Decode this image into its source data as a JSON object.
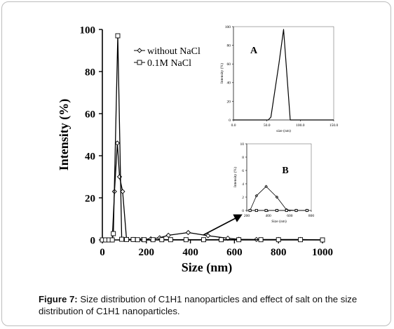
{
  "caption": {
    "label": "Figure 7:",
    "text": "Size distribution of C1H1 nanoparticles and effect of salt on the size distribution of C1H1 nanoparticles."
  },
  "chart_data": [
    {
      "id": "main",
      "type": "line",
      "title": "",
      "xlabel": "Size (nm)",
      "ylabel": "Intensity (%)",
      "xlim": [
        0,
        1000
      ],
      "ylim": [
        0,
        100
      ],
      "xticks": [
        "0",
        "200",
        "400",
        "600",
        "800",
        "1000"
      ],
      "yticks": [
        "0",
        "20",
        "40",
        "60",
        "80",
        "100"
      ],
      "legend_position": "top-center",
      "series": [
        {
          "name": "without NaCl",
          "marker": "diamond",
          "x": [
            0,
            15,
            30,
            45,
            55,
            68,
            78,
            92,
            110,
            140,
            180,
            220,
            260,
            300,
            390,
            480,
            570,
            620,
            700,
            800,
            900,
            1000
          ],
          "y": [
            0,
            0,
            0,
            0,
            23,
            46,
            30,
            23,
            0.3,
            0.2,
            0.2,
            0.5,
            1,
            2.2,
            3.5,
            2,
            0.8,
            0.3,
            0.2,
            0.2,
            0.2,
            0
          ]
        },
        {
          "name": "0.1M NaCl",
          "marker": "square",
          "x": [
            0,
            15,
            30,
            45,
            50,
            70,
            88,
            110,
            140,
            160,
            190,
            230,
            270,
            310,
            380,
            460,
            540,
            620,
            720,
            800,
            900,
            1000
          ],
          "y": [
            0,
            0,
            0,
            0,
            3,
            97,
            0.3,
            0.2,
            0.2,
            0.1,
            0.1,
            0.1,
            0.1,
            0.1,
            0.1,
            0.1,
            0.1,
            0.1,
            0.1,
            0.1,
            0.1,
            0
          ]
        }
      ]
    },
    {
      "id": "inset-a",
      "type": "line",
      "label": "A",
      "title": "",
      "xlabel": "size (nm)",
      "ylabel": "Intensity (%)",
      "xlim": [
        0,
        150
      ],
      "ylim": [
        0,
        100
      ],
      "xticks": [
        "0.0",
        "50.0",
        "100.0",
        "150.0"
      ],
      "yticks": [
        "0",
        "20",
        "40",
        "60",
        "80",
        "100"
      ],
      "series": [
        {
          "x": [
            0,
            52,
            56,
            68,
            75,
            85,
            150
          ],
          "y": [
            0,
            0,
            3,
            60,
            97,
            0,
            0
          ]
        }
      ]
    },
    {
      "id": "inset-b",
      "type": "line",
      "label": "B",
      "title": "",
      "xlabel": "Size (nm)",
      "ylabel": "Intensity (%)",
      "xlim": [
        200,
        800
      ],
      "ylim": [
        0,
        10
      ],
      "xticks": [
        "200",
        "400",
        "600",
        "800"
      ],
      "yticks": [
        "0",
        "2",
        "4",
        "6",
        "8",
        "10"
      ],
      "series": [
        {
          "marker": "diamond",
          "x": [
            230,
            290,
            380,
            480,
            570,
            660,
            760
          ],
          "y": [
            0,
            2.2,
            3.6,
            2,
            0.1,
            0,
            0
          ]
        },
        {
          "marker": "square",
          "x": [
            230,
            290,
            380,
            480,
            570,
            660,
            760
          ],
          "y": [
            0,
            0,
            0,
            0,
            0,
            0,
            0
          ]
        }
      ]
    }
  ]
}
